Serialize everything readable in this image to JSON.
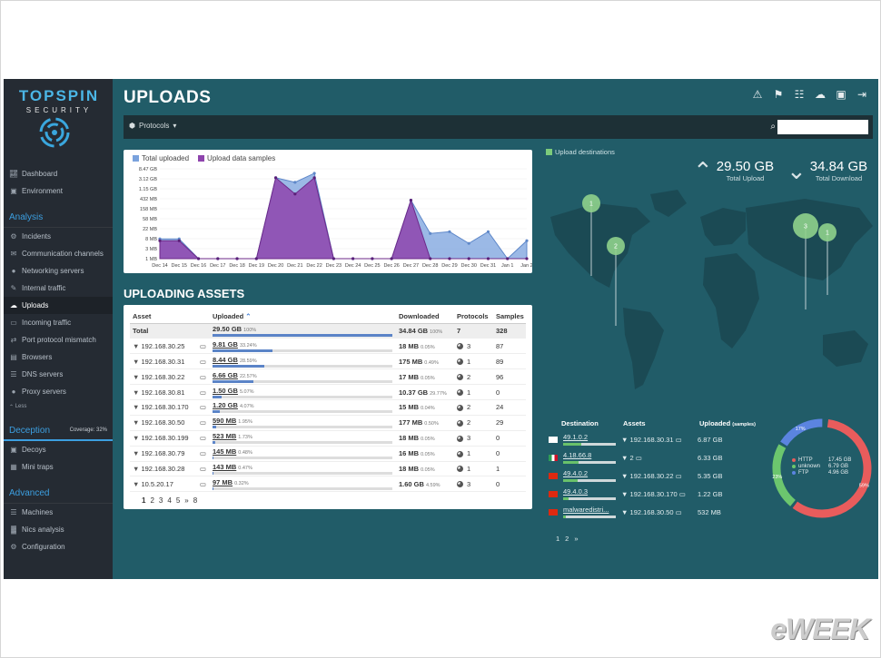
{
  "brand": {
    "title": "TOPSPIN",
    "subtitle": "SECURITY"
  },
  "sidebar": {
    "top_items": [
      {
        "label": "Dashboard",
        "icon": "line-chart-icon"
      },
      {
        "label": "Environment",
        "icon": "image-icon"
      }
    ],
    "analysis_heading": "Analysis",
    "analysis_items": [
      {
        "label": "Incidents",
        "icon": "gear-icon"
      },
      {
        "label": "Communication channels",
        "icon": "chat-icon"
      },
      {
        "label": "Networking servers",
        "icon": "globe-icon"
      },
      {
        "label": "Internal traffic",
        "icon": "pencil-icon"
      },
      {
        "label": "Uploads",
        "icon": "cloud-icon",
        "active": true
      },
      {
        "label": "Incoming traffic",
        "icon": "monitor-icon"
      },
      {
        "label": "Port protocol mismatch",
        "icon": "shuffle-icon"
      },
      {
        "label": "Browsers",
        "icon": "window-icon"
      },
      {
        "label": "DNS servers",
        "icon": "server-icon"
      },
      {
        "label": "Proxy servers",
        "icon": "globe-icon"
      }
    ],
    "less_label": "Less",
    "deception_heading": "Deception",
    "coverage_label": "Coverage: 32%",
    "deception_items": [
      {
        "label": "Decoys",
        "icon": "box-icon"
      },
      {
        "label": "Mini traps",
        "icon": "grid-icon"
      }
    ],
    "advanced_heading": "Advanced",
    "advanced_items": [
      {
        "label": "Machines",
        "icon": "server-icon"
      },
      {
        "label": "Nics analysis",
        "icon": "chart-icon"
      },
      {
        "label": "Configuration",
        "icon": "cog-icon"
      }
    ]
  },
  "header": {
    "title": "UPLOADS",
    "icons": [
      "alert-24-icon",
      "flag-24-icon",
      "report-icon",
      "cloud-check-icon",
      "camera-icon",
      "logout-icon"
    ]
  },
  "toolbar": {
    "protocols_label": "Protocols",
    "search_placeholder": ""
  },
  "chart_data": {
    "type": "area",
    "legend": [
      "Total uploaded",
      "Upload data samples"
    ],
    "colors": {
      "total": "#7aa2dd",
      "samples": "#8e44ad"
    },
    "y_ticks": [
      "8.47 GB",
      "3.12 GB",
      "1.15 GB",
      "432 MB",
      "158 MB",
      "58 MB",
      "22 MB",
      "8 MB",
      "3 MB",
      "1 MB"
    ],
    "categories": [
      "Dec 14",
      "Dec 15",
      "Dec 16",
      "Dec 17",
      "Dec 18",
      "Dec 19",
      "Dec 20",
      "Dec 21",
      "Dec 22",
      "Dec 23",
      "Dec 24",
      "Dec 25",
      "Dec 26",
      "Dec 27",
      "Dec 28",
      "Dec 29",
      "Dec 30",
      "Dec 31",
      "Jan 1",
      "Jan 2"
    ],
    "series": [
      {
        "name": "Total uploaded",
        "values": [
          2.2,
          2.2,
          0,
          0,
          0,
          0,
          9.0,
          8.5,
          9.5,
          0,
          0,
          0,
          0,
          6.5,
          2.8,
          3.0,
          1.7,
          3.0,
          0,
          2.0
        ]
      },
      {
        "name": "Upload data samples",
        "values": [
          2.0,
          2.0,
          0,
          0,
          0,
          0,
          9.0,
          7.2,
          9.0,
          0,
          0,
          0,
          0,
          6.5,
          0,
          0,
          0,
          0,
          0,
          0
        ]
      }
    ],
    "ylim": [
      0,
      10
    ]
  },
  "assets": {
    "section_title": "UPLOADING ASSETS",
    "headers": [
      "Asset",
      "Uploaded",
      "Downloaded",
      "Protocols",
      "Samples"
    ],
    "sort_icon": "sort-asc-icon",
    "total": {
      "asset": "Total",
      "uploaded": "29.50 GB",
      "uploaded_pct": "100%",
      "uploaded_frac": 1.0,
      "downloaded": "34.84 GB",
      "downloaded_pct": "100%",
      "downloaded_frac": 1.0,
      "protocols": "7",
      "samples": "328"
    },
    "rows": [
      {
        "asset": "192.168.30.25",
        "uploaded": "9.81 GB",
        "uploaded_pct": "33.24%",
        "uploaded_frac": 0.3324,
        "downloaded": "18 MB",
        "downloaded_pct": "0.05%",
        "downloaded_frac": 0.0005,
        "protocols": "3",
        "samples": "87"
      },
      {
        "asset": "192.168.30.31",
        "uploaded": "8.44 GB",
        "uploaded_pct": "28.59%",
        "uploaded_frac": 0.2859,
        "downloaded": "175 MB",
        "downloaded_pct": "0.49%",
        "downloaded_frac": 0.0049,
        "protocols": "1",
        "samples": "89"
      },
      {
        "asset": "192.168.30.22",
        "uploaded": "6.66 GB",
        "uploaded_pct": "22.57%",
        "uploaded_frac": 0.2257,
        "downloaded": "17 MB",
        "downloaded_pct": "0.05%",
        "downloaded_frac": 0.0005,
        "protocols": "2",
        "samples": "96"
      },
      {
        "asset": "192.168.30.81",
        "uploaded": "1.50 GB",
        "uploaded_pct": "5.07%",
        "uploaded_frac": 0.0507,
        "downloaded": "10.37 GB",
        "downloaded_pct": "29.77%",
        "downloaded_frac": 0.2977,
        "protocols": "1",
        "samples": "0"
      },
      {
        "asset": "192.168.30.170",
        "uploaded": "1.20 GB",
        "uploaded_pct": "4.07%",
        "uploaded_frac": 0.0407,
        "downloaded": "15 MB",
        "downloaded_pct": "0.04%",
        "downloaded_frac": 0.0004,
        "protocols": "2",
        "samples": "24"
      },
      {
        "asset": "192.168.30.50",
        "uploaded": "590 MB",
        "uploaded_pct": "1.95%",
        "uploaded_frac": 0.0195,
        "downloaded": "177 MB",
        "downloaded_pct": "0.50%",
        "downloaded_frac": 0.005,
        "protocols": "2",
        "samples": "29"
      },
      {
        "asset": "192.168.30.199",
        "uploaded": "523 MB",
        "uploaded_pct": "1.73%",
        "uploaded_frac": 0.0173,
        "downloaded": "18 MB",
        "downloaded_pct": "0.05%",
        "downloaded_frac": 0.0005,
        "protocols": "3",
        "samples": "0"
      },
      {
        "asset": "192.168.30.79",
        "uploaded": "145 MB",
        "uploaded_pct": "0.48%",
        "uploaded_frac": 0.0048,
        "downloaded": "16 MB",
        "downloaded_pct": "0.05%",
        "downloaded_frac": 0.0005,
        "protocols": "1",
        "samples": "0"
      },
      {
        "asset": "192.168.30.28",
        "uploaded": "143 MB",
        "uploaded_pct": "0.47%",
        "uploaded_frac": 0.0047,
        "downloaded": "18 MB",
        "downloaded_pct": "0.05%",
        "downloaded_frac": 0.0005,
        "protocols": "1",
        "samples": "1"
      },
      {
        "asset": "10.5.20.17",
        "uploaded": "97 MB",
        "uploaded_pct": "0.32%",
        "uploaded_frac": 0.0032,
        "downloaded": "1.60 GB",
        "downloaded_pct": "4.59%",
        "downloaded_frac": 0.0459,
        "protocols": "3",
        "samples": "0"
      }
    ],
    "pager": [
      "1",
      "2",
      "3",
      "4",
      "5",
      "»",
      "8"
    ]
  },
  "map": {
    "legend": "Upload destinations",
    "total_upload_value": "29.50 GB",
    "total_upload_label": "Total Upload",
    "total_download_value": "34.84 GB",
    "total_download_label": "Total Download",
    "markers": [
      "1",
      "2",
      "3",
      "1"
    ]
  },
  "destinations": {
    "headers": {
      "destination": "Destination",
      "assets": "Assets",
      "uploaded": "Uploaded",
      "uploaded_sub": "(samples)"
    },
    "rows": [
      {
        "flag": "kr",
        "destination": "49.1.0.2",
        "fill": 0.35,
        "asset": "192.168.30.31",
        "uploaded": "6.87 GB"
      },
      {
        "flag": "mx",
        "destination": "4.18.66.8",
        "fill": 0.3,
        "asset": "2",
        "uploaded": "6.33 GB"
      },
      {
        "flag": "cn",
        "destination": "49.4.0.2",
        "fill": 0.28,
        "asset": "192.168.30.22",
        "uploaded": "5.35 GB"
      },
      {
        "flag": "cn",
        "destination": "49.4.0.3",
        "fill": 0.1,
        "asset": "192.168.30.170",
        "uploaded": "1.22 GB"
      },
      {
        "flag": "cn",
        "destination": "malwaredistri...",
        "fill": 0.05,
        "asset": "192.168.30.50",
        "uploaded": "532 MB"
      }
    ],
    "pager": [
      "1",
      "2",
      "»"
    ]
  },
  "protocol_donut": {
    "colors": {
      "HTTP": "#e85c5c",
      "unknown": "#6cc66e",
      "FTP": "#5b84e0"
    },
    "legend": [
      {
        "name": "HTTP",
        "value": "17.45 GB"
      },
      {
        "name": "unknown",
        "value": "6.79 GB"
      },
      {
        "name": "FTP",
        "value": "4.96 GB"
      }
    ],
    "labels": {
      "HTTP": "59%",
      "unknown": "23%",
      "FTP": "17%"
    },
    "fractions": [
      0.59,
      0.23,
      0.17
    ]
  },
  "watermark": "eWEEK"
}
